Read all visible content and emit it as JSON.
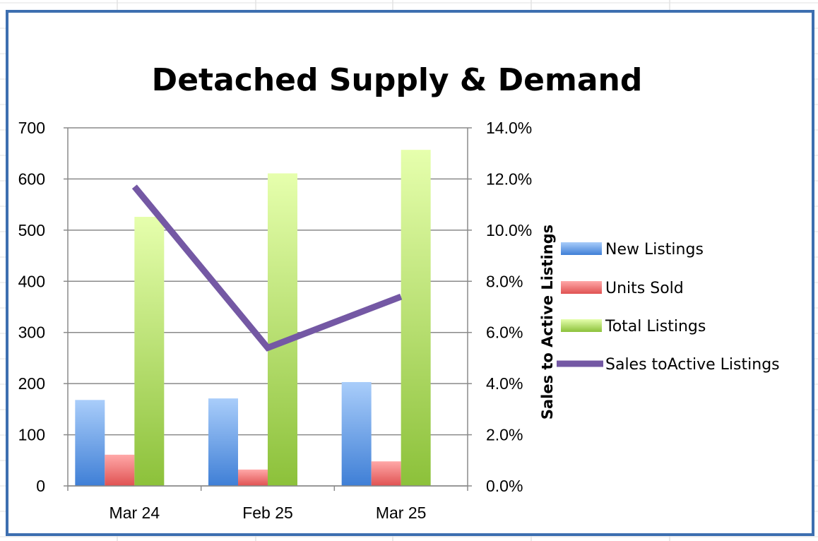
{
  "chart_data": {
    "type": "bar",
    "title": "Detached Supply & Demand",
    "categories": [
      "Mar 24",
      "Feb 25",
      "Mar 25"
    ],
    "series": [
      {
        "name": "New Listings",
        "type": "bar",
        "axis": "left",
        "values": [
          168,
          171,
          203
        ],
        "color": "#4f81bd"
      },
      {
        "name": "Units Sold",
        "type": "bar",
        "axis": "left",
        "values": [
          61,
          32,
          48
        ],
        "color": "#e0585a"
      },
      {
        "name": "Total Listings",
        "type": "bar",
        "axis": "left",
        "values": [
          526,
          611,
          657
        ],
        "color": "#9bc53f"
      },
      {
        "name": "Sales toActive Listings",
        "type": "line",
        "axis": "right",
        "values": [
          11.7,
          5.4,
          7.4
        ],
        "color": "#7b5ea7"
      }
    ],
    "ylim": [
      0,
      700
    ],
    "yticks": [
      "0",
      "100",
      "200",
      "300",
      "400",
      "500",
      "600",
      "700"
    ],
    "y2lim": [
      0,
      14
    ],
    "y2ticks": [
      "0.0%",
      "2.0%",
      "4.0%",
      "6.0%",
      "8.0%",
      "10.0%",
      "12.0%",
      "14.0%"
    ],
    "y2label": "Sales to Active Listings",
    "xlabel": "",
    "ylabel": "",
    "grid": true,
    "legend_position": "right"
  }
}
